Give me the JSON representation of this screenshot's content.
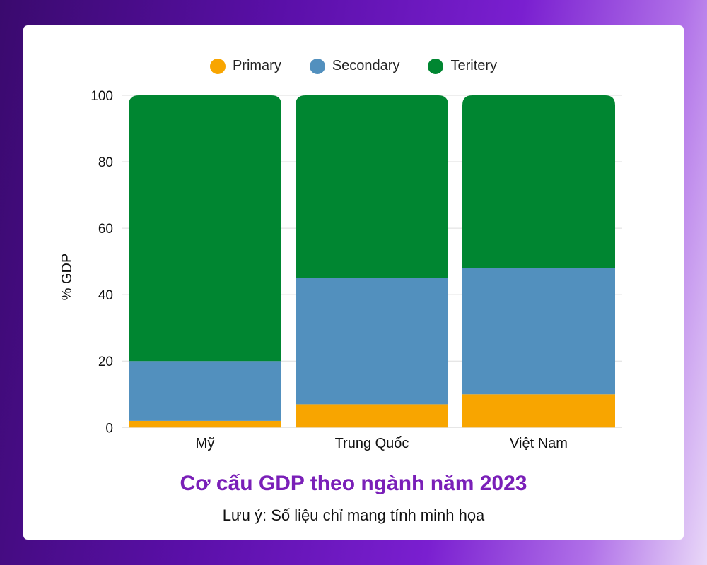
{
  "chart_data": {
    "type": "bar",
    "stacked": true,
    "title": "Cơ cấu GDP theo ngành năm 2023",
    "subtitle": "Lưu ý: Số liệu chỉ mang tính minh họa",
    "ylabel": "% GDP",
    "xlabel": "",
    "ylim": [
      0,
      100
    ],
    "yticks": [
      "0",
      "20",
      "40",
      "60",
      "80",
      "100"
    ],
    "grid": true,
    "legend_position": "top",
    "categories": [
      "Mỹ",
      "Trung Quốc",
      "Việt Nam"
    ],
    "series": [
      {
        "name": "Primary",
        "color": "#f8a500",
        "values": [
          2,
          7,
          10
        ]
      },
      {
        "name": "Secondary",
        "color": "#5290be",
        "values": [
          18,
          38,
          38
        ]
      },
      {
        "name": "Teritery",
        "color": "#008631",
        "values": [
          80,
          55,
          52
        ]
      }
    ]
  }
}
